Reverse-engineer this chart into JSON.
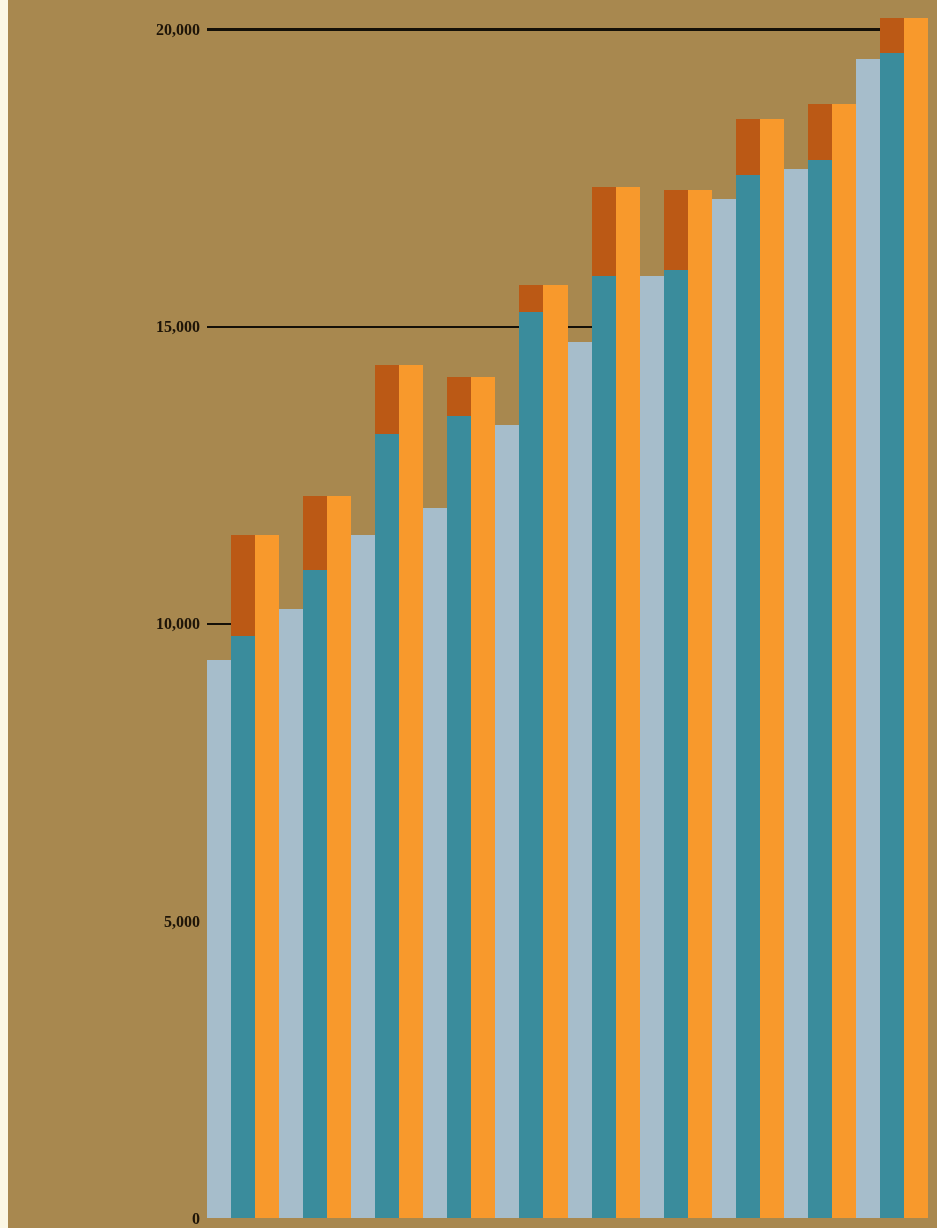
{
  "chart_data": {
    "type": "bar",
    "categories": [
      null,
      null,
      null,
      null,
      null,
      null,
      null,
      null,
      null,
      null,
      null,
      null,
      null,
      null,
      null,
      null,
      null,
      null,
      null,
      null,
      null,
      null,
      null,
      null,
      null,
      null,
      null,
      null,
      null,
      null
    ],
    "stacked": true,
    "series": [
      {
        "color": "#a6bdcb",
        "values": [
          9400,
          null,
          null,
          10250,
          null,
          null,
          11500,
          null,
          null,
          11950,
          null,
          null,
          13350,
          null,
          null,
          14750,
          null,
          null,
          15850,
          null,
          null,
          17150,
          null,
          null,
          17650,
          null,
          null,
          19500,
          null,
          null
        ]
      },
      {
        "color": "#3a8c9c",
        "values": [
          null,
          9800,
          null,
          null,
          10900,
          null,
          null,
          13200,
          null,
          null,
          13500,
          null,
          null,
          15250,
          null,
          null,
          15850,
          null,
          null,
          15950,
          null,
          null,
          17550,
          null,
          null,
          17800,
          null,
          null,
          19600,
          null
        ]
      },
      {
        "color": "#bb5915",
        "values": [
          null,
          1700,
          null,
          null,
          1250,
          null,
          null,
          1150,
          null,
          null,
          650,
          null,
          null,
          450,
          null,
          null,
          1500,
          null,
          null,
          1350,
          null,
          null,
          950,
          null,
          null,
          950,
          null,
          null,
          600,
          null
        ]
      },
      {
        "color": "#f8992c",
        "values": [
          null,
          null,
          11500,
          null,
          null,
          12150,
          null,
          null,
          14350,
          null,
          null,
          14150,
          null,
          null,
          15700,
          null,
          null,
          17350,
          null,
          null,
          17300,
          null,
          null,
          18500,
          null,
          null,
          18750,
          null,
          null,
          20200
        ]
      }
    ],
    "ylim": [
      0,
      20500
    ],
    "yticks": [
      0,
      {
        "value": 5000,
        "label": "5,000"
      },
      {
        "value": 10000,
        "label": "10,000"
      },
      {
        "value": 15000,
        "label": "15,000"
      },
      {
        "value": 20000,
        "label": "20,000"
      }
    ],
    "grid": "y",
    "tick_labels": "y"
  }
}
